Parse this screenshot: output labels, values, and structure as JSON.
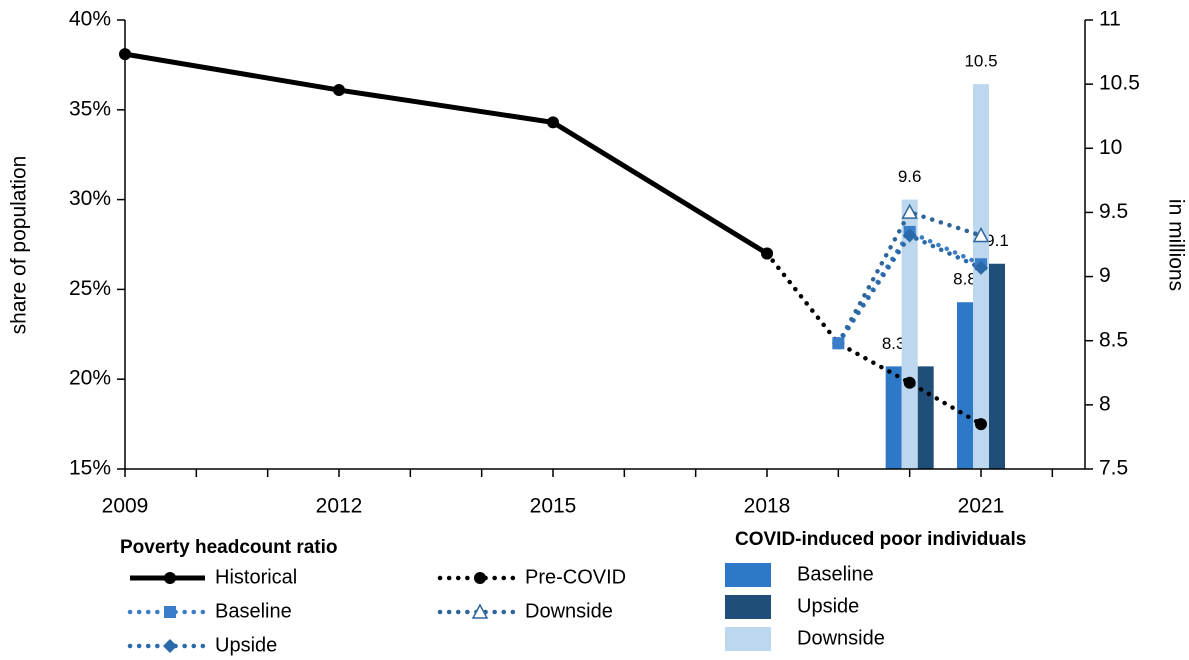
{
  "chart_data": {
    "type": "combo",
    "ylabel": "share of population",
    "y2label": "in millions",
    "xlim": [
      2009,
      2022.5
    ],
    "xticks": [
      2009,
      2012,
      2015,
      2018,
      2021
    ],
    "x_minor_ticks": [
      2010,
      2011,
      2013,
      2014,
      2016,
      2017,
      2019,
      2020,
      2022
    ],
    "ylim": [
      15,
      40
    ],
    "yticks": [
      {
        "value": 15,
        "label": "15%"
      },
      {
        "value": 20,
        "label": "20%"
      },
      {
        "value": 25,
        "label": "25%"
      },
      {
        "value": 30,
        "label": "30%"
      },
      {
        "value": 35,
        "label": "35%"
      },
      {
        "value": 40,
        "label": "40%"
      }
    ],
    "y2lim": [
      7.5,
      11
    ],
    "y2ticks": [
      7.5,
      8,
      8.5,
      9,
      9.5,
      10,
      10.5,
      11
    ],
    "line_legend_title": "Poverty headcount ratio",
    "bar_legend_title": "COVID-induced poor individuals",
    "series": [
      {
        "name": "Historical",
        "color": "#000000",
        "style": "solid",
        "marker": "circle",
        "x": [
          2009,
          2012,
          2015,
          2018
        ],
        "values": [
          38.1,
          36.1,
          34.3,
          27.0
        ]
      },
      {
        "name": "Pre-COVID",
        "color": "#000000",
        "style": "dotted",
        "marker": "circle",
        "x": [
          2018,
          2019,
          2020,
          2021
        ],
        "values": [
          27.0,
          22.0,
          19.8,
          17.5
        ]
      },
      {
        "name": "Baseline",
        "color": "#3a7dc9",
        "style": "dotted",
        "marker": "square",
        "x": [
          2019,
          2020,
          2021
        ],
        "values": [
          22.0,
          28.2,
          26.4
        ]
      },
      {
        "name": "Downside",
        "color": "#2f6699",
        "style": "dotted",
        "marker": "triangle",
        "x": [
          2019,
          2020,
          2021
        ],
        "values": [
          22.0,
          29.3,
          28.0
        ]
      },
      {
        "name": "Upside",
        "color": "#2a6aa8",
        "style": "dotted",
        "marker": "diamond",
        "x": [
          2019,
          2020,
          2021
        ],
        "values": [
          22.0,
          28.0,
          26.2
        ]
      }
    ],
    "bar_x": [
      2020,
      2021
    ],
    "bar_series": [
      {
        "name": "Baseline",
        "color": "#2e78c8",
        "axis": "y2",
        "values": [
          8.3,
          8.8
        ],
        "value_labels": [
          "8.3",
          "8.8"
        ]
      },
      {
        "name": "Upside",
        "color": "#1f4e79",
        "axis": "y2",
        "values": [
          8.3,
          9.1
        ],
        "value_labels": [
          null,
          "9.1"
        ]
      },
      {
        "name": "Downside",
        "color": "#bdd7ee",
        "axis": "y2",
        "values": [
          9.6,
          10.5
        ],
        "value_labels": [
          "9.6",
          "10.5"
        ]
      }
    ]
  }
}
